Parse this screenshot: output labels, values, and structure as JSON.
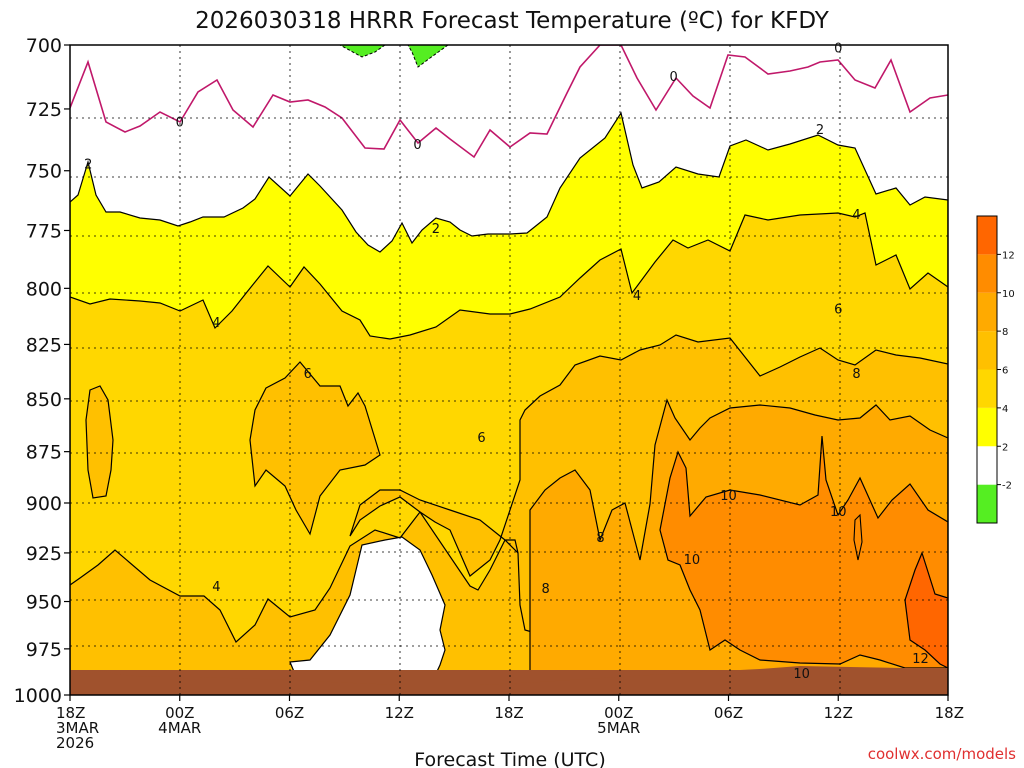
{
  "chart_data": {
    "type": "heatmap",
    "title": "2026030318 HRRR Forecast Temperature (ºC) for KFDY",
    "xlabel": "Forecast Time (UTC)",
    "credit": "coolwx.com/models",
    "y_axis": {
      "label": "",
      "ticks": [
        700,
        725,
        750,
        775,
        800,
        825,
        850,
        875,
        900,
        925,
        950,
        975,
        1000
      ],
      "ylim": [
        700,
        1000
      ],
      "inverted": true
    },
    "x_axis": {
      "xlim": [
        0,
        48
      ],
      "ticks": [
        {
          "hour": 0,
          "lines": [
            "18Z",
            "3MAR",
            "2026"
          ]
        },
        {
          "hour": 6,
          "lines": [
            "00Z",
            "4MAR"
          ]
        },
        {
          "hour": 12,
          "lines": [
            "06Z"
          ]
        },
        {
          "hour": 18,
          "lines": [
            "12Z"
          ]
        },
        {
          "hour": 24,
          "lines": [
            "18Z"
          ]
        },
        {
          "hour": 30,
          "lines": [
            "00Z",
            "5MAR"
          ]
        },
        {
          "hour": 36,
          "lines": [
            "06Z"
          ]
        },
        {
          "hour": 42,
          "lines": [
            "12Z"
          ]
        },
        {
          "hour": 48,
          "lines": [
            "18Z"
          ]
        }
      ]
    },
    "grid": true,
    "colorbar": {
      "position": "right",
      "levels": [
        {
          "from": -4,
          "to": -2,
          "color": "#55ee22",
          "label": "-2"
        },
        {
          "from": -2,
          "to": 2,
          "color": "#ffffff",
          "label": "2"
        },
        {
          "from": 2,
          "to": 4,
          "color": "#ffff00",
          "label": "4"
        },
        {
          "from": 4,
          "to": 6,
          "color": "#ffd700",
          "label": "6"
        },
        {
          "from": 6,
          "to": 8,
          "color": "#ffc000",
          "label": "8"
        },
        {
          "from": 8,
          "to": 10,
          "color": "#ffaa00",
          "label": "10"
        },
        {
          "from": 10,
          "to": 12,
          "color": "#ff8c00",
          "label": "12"
        },
        {
          "from": 12,
          "to": 14,
          "color": "#ff6600",
          "label": ""
        }
      ]
    },
    "ground_color": "#a0522d",
    "contour_labels": [
      {
        "text": "0",
        "hour": 6.0,
        "p": 730
      },
      {
        "text": "0",
        "hour": 19.0,
        "p": 739
      },
      {
        "text": "0",
        "hour": 33.0,
        "p": 712
      },
      {
        "text": "0",
        "hour": 42.0,
        "p": 701
      },
      {
        "text": "2",
        "hour": 1.0,
        "p": 747
      },
      {
        "text": "2",
        "hour": 20.0,
        "p": 774
      },
      {
        "text": "2",
        "hour": 41.0,
        "p": 733
      },
      {
        "text": "4",
        "hour": 8.0,
        "p": 815
      },
      {
        "text": "4",
        "hour": 31.0,
        "p": 803
      },
      {
        "text": "4",
        "hour": 43.0,
        "p": 768
      },
      {
        "text": "4",
        "hour": 8.0,
        "p": 942
      },
      {
        "text": "6",
        "hour": 13.0,
        "p": 838
      },
      {
        "text": "6",
        "hour": 22.5,
        "p": 868
      },
      {
        "text": "6",
        "hour": 42.0,
        "p": 809
      },
      {
        "text": "8",
        "hour": 26.0,
        "p": 943
      },
      {
        "text": "8",
        "hour": 29.0,
        "p": 917
      },
      {
        "text": "8",
        "hour": 43.0,
        "p": 838
      },
      {
        "text": "10",
        "hour": 36.0,
        "p": 896
      },
      {
        "text": "10",
        "hour": 34.0,
        "p": 928
      },
      {
        "text": "10",
        "hour": 42.0,
        "p": 904
      },
      {
        "text": "10",
        "hour": 40.0,
        "p": 988
      },
      {
        "text": "12",
        "hour": 46.5,
        "p": 980
      }
    ]
  }
}
